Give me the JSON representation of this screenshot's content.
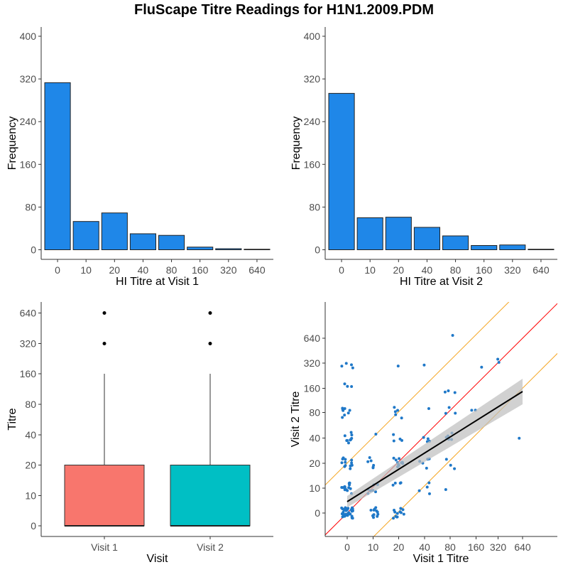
{
  "title": "FluScape Titre Readings for H1N1.2009.PDM",
  "titre_levels": [
    "0",
    "10",
    "20",
    "40",
    "80",
    "160",
    "320",
    "640"
  ],
  "colors": {
    "bar_fill": "#1f87e8",
    "bar_stroke": "#222222",
    "visit1_box": "#f8766d",
    "visit2_box": "#00bfc4",
    "scatter_point": "#1f78c8",
    "identity_line": "#ff0000",
    "offset_lines": "#f5a623",
    "fit_line": "#000000",
    "ci_band": "#bdbdbd",
    "axis": "#333333",
    "text": "#4d4d4d"
  },
  "chart_data": [
    {
      "type": "bar",
      "panel": "top-left",
      "categories": [
        "0",
        "10",
        "20",
        "40",
        "80",
        "160",
        "320",
        "640"
      ],
      "values": [
        313,
        53,
        69,
        30,
        27,
        5,
        2,
        1
      ],
      "xlabel": "HI Titre at Visit 1",
      "ylabel": "Frequency",
      "ylim": [
        0,
        400
      ],
      "yticks": [
        "0",
        "80",
        "160",
        "240",
        "320",
        "400"
      ],
      "grid": false
    },
    {
      "type": "bar",
      "panel": "top-right",
      "categories": [
        "0",
        "10",
        "20",
        "40",
        "80",
        "160",
        "320",
        "640"
      ],
      "values": [
        293,
        60,
        61,
        42,
        26,
        8,
        9,
        1
      ],
      "xlabel": "HI Titre at Visit 2",
      "ylabel": "Frequency",
      "ylim": [
        0,
        400
      ],
      "yticks": [
        "0",
        "80",
        "160",
        "240",
        "320",
        "400"
      ],
      "grid": false
    },
    {
      "type": "box",
      "panel": "bottom-left",
      "categories": [
        "Visit 1",
        "Visit 2"
      ],
      "xlabel": "Visit",
      "ylabel": "Titre",
      "yticks": [
        "0",
        "10",
        "20",
        "40",
        "80",
        "160",
        "320",
        "640"
      ],
      "boxes": [
        {
          "category": "Visit 1",
          "q1": "0",
          "median": "0",
          "q3": "20",
          "whisker_low": "0",
          "whisker_high": "160",
          "outliers": [
            "320",
            "640"
          ]
        },
        {
          "category": "Visit 2",
          "q1": "0",
          "median": "0",
          "q3": "20",
          "whisker_low": "0",
          "whisker_high": "160",
          "outliers": [
            "320",
            "640"
          ]
        }
      ],
      "grid": false
    },
    {
      "type": "scatter",
      "panel": "bottom-right",
      "xlabel": "Visit 1 Titre",
      "ylabel": "Visit 2 Titre",
      "xticks": [
        "0",
        "10",
        "20",
        "40",
        "80",
        "160",
        "320",
        "640"
      ],
      "yticks": [
        "0",
        "10",
        "20",
        "40",
        "80",
        "160",
        "320",
        "640"
      ],
      "note": "jittered counts of (visit1, visit2) titre pairs on log-scale axes",
      "pairs": [
        {
          "x": "0",
          "y": "0",
          "n": 40
        },
        {
          "x": "0",
          "y": "10",
          "n": 14
        },
        {
          "x": "0",
          "y": "20",
          "n": 14
        },
        {
          "x": "0",
          "y": "40",
          "n": 9
        },
        {
          "x": "0",
          "y": "80",
          "n": 8
        },
        {
          "x": "0",
          "y": "160",
          "n": 3
        },
        {
          "x": "0",
          "y": "320",
          "n": 4
        },
        {
          "x": "10",
          "y": "0",
          "n": 12
        },
        {
          "x": "10",
          "y": "10",
          "n": 8
        },
        {
          "x": "10",
          "y": "20",
          "n": 6
        },
        {
          "x": "10",
          "y": "40",
          "n": 1
        },
        {
          "x": "20",
          "y": "0",
          "n": 12
        },
        {
          "x": "20",
          "y": "10",
          "n": 4
        },
        {
          "x": "20",
          "y": "20",
          "n": 10
        },
        {
          "x": "20",
          "y": "40",
          "n": 4
        },
        {
          "x": "20",
          "y": "80",
          "n": 5
        },
        {
          "x": "20",
          "y": "320",
          "n": 1
        },
        {
          "x": "40",
          "y": "10",
          "n": 4
        },
        {
          "x": "40",
          "y": "20",
          "n": 5
        },
        {
          "x": "40",
          "y": "40",
          "n": 4
        },
        {
          "x": "40",
          "y": "80",
          "n": 1
        },
        {
          "x": "40",
          "y": "320",
          "n": 1
        },
        {
          "x": "80",
          "y": "20",
          "n": 3
        },
        {
          "x": "80",
          "y": "40",
          "n": 6
        },
        {
          "x": "80",
          "y": "80",
          "n": 3
        },
        {
          "x": "80",
          "y": "160",
          "n": 3
        },
        {
          "x": "80",
          "y": "640",
          "n": 1
        },
        {
          "x": "80",
          "y": "10",
          "n": 1
        },
        {
          "x": "160",
          "y": "80",
          "n": 2
        },
        {
          "x": "160",
          "y": "320",
          "n": 1
        },
        {
          "x": "320",
          "y": "320",
          "n": 2
        },
        {
          "x": "640",
          "y": "40",
          "n": 1
        }
      ],
      "reference_lines": [
        "y = x (red)",
        "y = 4x and y = x/4 (orange)"
      ],
      "fit": {
        "method": "linear",
        "x_range": [
          "0",
          "640"
        ],
        "y_range": [
          "5",
          "140"
        ],
        "ci_band": true
      }
    }
  ]
}
